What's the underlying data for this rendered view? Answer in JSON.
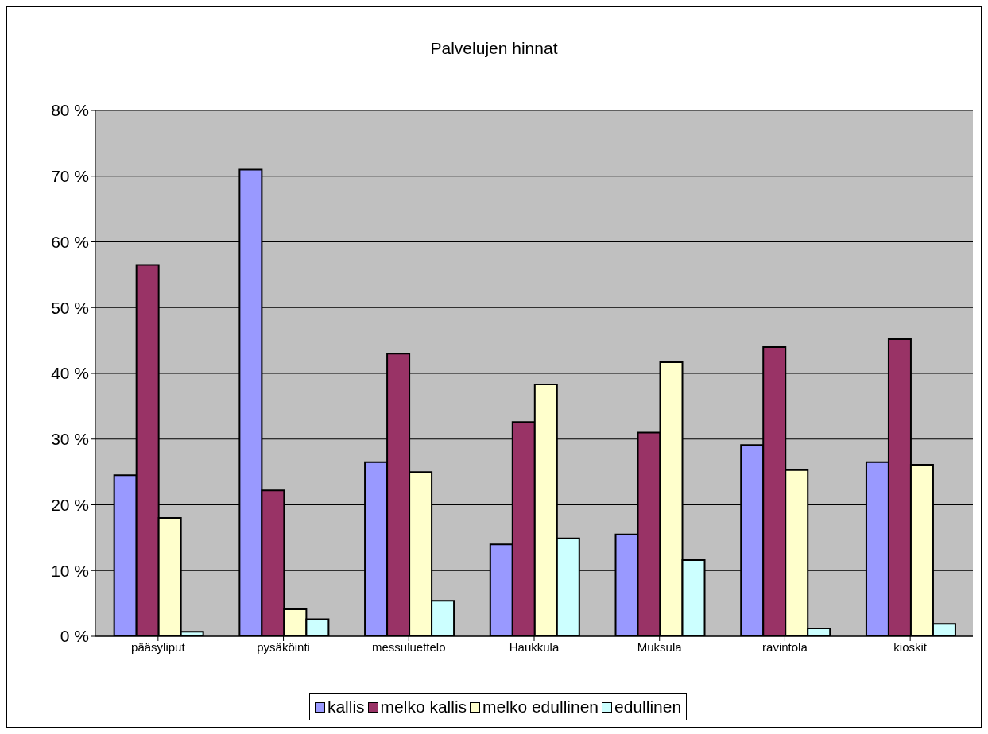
{
  "chart_data": {
    "type": "bar",
    "title": "Palvelujen hinnat",
    "categories": [
      "pääsyliput",
      "pysäköinti",
      "messuluettelo",
      "Haukkula",
      "Muksula",
      "ravintola",
      "kioskit"
    ],
    "series": [
      {
        "name": "kallis",
        "color": "#9999ff",
        "values": [
          24.5,
          71,
          26.5,
          14,
          15.5,
          29.1,
          26.5
        ]
      },
      {
        "name": "melko kallis",
        "color": "#993366",
        "values": [
          56.5,
          22.2,
          43,
          32.6,
          31,
          44,
          45.2
        ]
      },
      {
        "name": "melko edullinen",
        "color": "#ffffcc",
        "values": [
          18,
          4.1,
          25,
          38.3,
          41.7,
          25.3,
          26.1
        ]
      },
      {
        "name": "edullinen",
        "color": "#ccffff",
        "values": [
          0.7,
          2.6,
          5.4,
          14.9,
          11.6,
          1.2,
          1.9
        ]
      }
    ],
    "ylim": [
      0,
      80
    ],
    "yticks": [
      {
        "value": 0,
        "label": "0 %"
      },
      {
        "value": 10,
        "label": "10 %"
      },
      {
        "value": 20,
        "label": "20 %"
      },
      {
        "value": 30,
        "label": "30 %"
      },
      {
        "value": 40,
        "label": "40 %"
      },
      {
        "value": 50,
        "label": "50 %"
      },
      {
        "value": 60,
        "label": "60 %"
      },
      {
        "value": 70,
        "label": "70 %"
      },
      {
        "value": 80,
        "label": "80 %"
      }
    ],
    "grid": "y",
    "legend": "bottom"
  }
}
